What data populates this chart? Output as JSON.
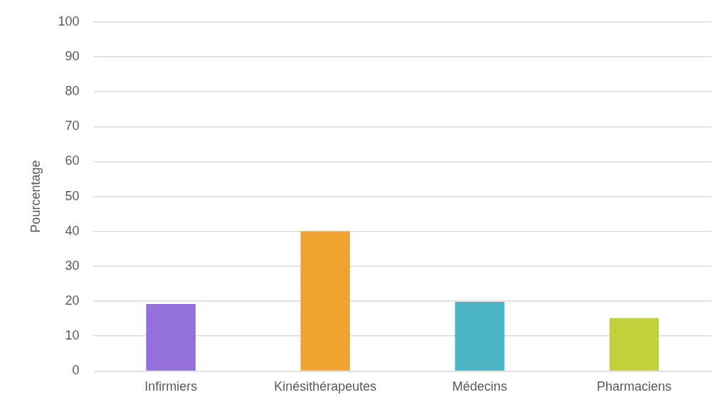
{
  "chart_data": {
    "type": "bar",
    "ylabel": "Pourcentage",
    "categories": [
      "Infirmiers",
      "Kinésithérapeutes",
      "Médecins",
      "Pharmaciens"
    ],
    "values": [
      19.2,
      40,
      19.8,
      15.2
    ],
    "colors": [
      "#9370db",
      "#f0a330",
      "#4bb5c4",
      "#c2d13a"
    ],
    "ylim": [
      0,
      100
    ],
    "yticks": [
      0,
      10,
      20,
      30,
      40,
      50,
      60,
      70,
      80,
      90,
      100
    ],
    "grid": "y",
    "legend": false
  }
}
